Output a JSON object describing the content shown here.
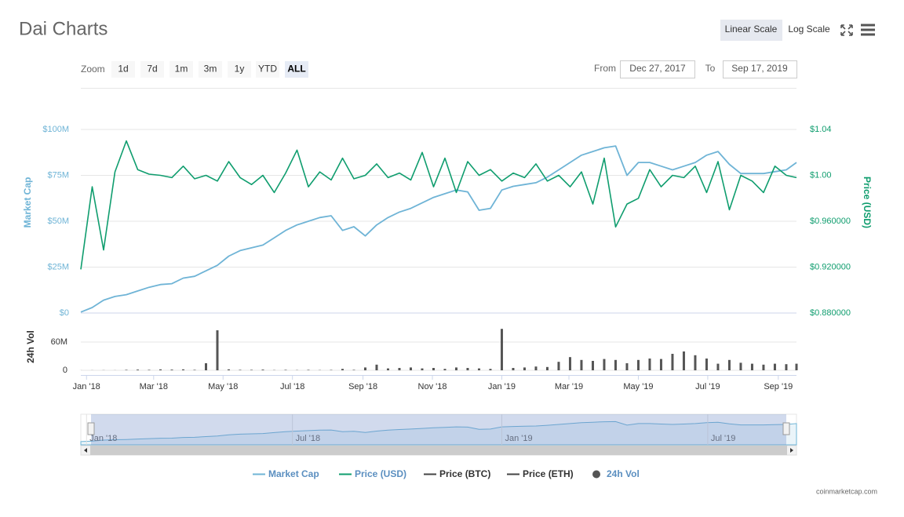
{
  "title": "Dai Charts",
  "scale_buttons": [
    "Linear Scale",
    "Log Scale"
  ],
  "zoom_label": "Zoom",
  "zoom_buttons": [
    "1d",
    "7d",
    "1m",
    "3m",
    "1y",
    "YTD",
    "ALL"
  ],
  "zoom_selected_index": 6,
  "from_label": "From",
  "from_date": "Dec 27, 2017",
  "to_label": "To",
  "to_date": "Sep 17, 2019",
  "credit": "coinmarketcap.com",
  "chart_data": {
    "type": "line",
    "grid": true,
    "ylabel": "Market Cap",
    "y2label": "Price (USD)",
    "volume_ylabel": "24h Vol",
    "x": [
      0,
      10,
      20,
      30,
      40,
      50,
      60,
      70,
      80,
      90,
      100,
      110,
      120,
      130,
      140,
      150,
      160,
      170,
      180,
      190,
      200,
      210,
      220,
      230,
      240,
      250,
      260,
      270,
      280,
      290,
      300,
      310,
      320,
      330,
      340,
      350,
      360,
      370,
      380,
      390,
      400,
      410,
      420,
      430,
      440,
      450,
      460,
      470,
      480,
      490,
      500,
      510,
      520,
      530,
      540,
      550,
      560,
      570,
      580,
      590,
      600,
      610,
      620,
      629
    ],
    "xlim": [
      0,
      629
    ],
    "xticks": [
      {
        "value": 5,
        "label": "Jan '18"
      },
      {
        "value": 64,
        "label": "Mar '18"
      },
      {
        "value": 125,
        "label": "May '18"
      },
      {
        "value": 186,
        "label": "Jul '18"
      },
      {
        "value": 248,
        "label": "Sep '18"
      },
      {
        "value": 309,
        "label": "Nov '18"
      },
      {
        "value": 370,
        "label": "Jan '19"
      },
      {
        "value": 429,
        "label": "Mar '19"
      },
      {
        "value": 490,
        "label": "May '19"
      },
      {
        "value": 551,
        "label": "Jul '19"
      },
      {
        "value": 613,
        "label": "Sep '19"
      }
    ],
    "navigator_xticks": [
      {
        "value": 5,
        "label": "Jan '18"
      },
      {
        "value": 186,
        "label": "Jul '18"
      },
      {
        "value": 370,
        "label": "Jan '19"
      },
      {
        "value": 551,
        "label": "Jul '19"
      }
    ],
    "ylim": [
      0,
      110000000
    ],
    "yticks": [
      {
        "value": 0,
        "label": "$0"
      },
      {
        "value": 25000000,
        "label": "$25M"
      },
      {
        "value": 50000000,
        "label": "$50M"
      },
      {
        "value": 75000000,
        "label": "$75M"
      },
      {
        "value": 100000000,
        "label": "$100M"
      }
    ],
    "y2lim": [
      0.88,
      1.056
    ],
    "y2ticks": [
      {
        "value": 0.88,
        "label": "$0.880000"
      },
      {
        "value": 0.92,
        "label": "$0.920000"
      },
      {
        "value": 0.96,
        "label": "$0.960000"
      },
      {
        "value": 1,
        "label": "$1.00"
      },
      {
        "value": 1.04,
        "label": "$1.04"
      }
    ],
    "volume_ylim": [
      0,
      110000000
    ],
    "volume_yticks": [
      0,
      {
        "value": 60000000,
        "label": "60M"
      }
    ],
    "series": [
      {
        "name": "Market Cap",
        "color": "#6fb4d6",
        "values": [
          500000,
          3000000,
          7000000,
          9000000,
          10000000,
          12000000,
          14000000,
          15500000,
          16000000,
          19000000,
          20000000,
          23000000,
          26000000,
          31000000,
          34000000,
          35500000,
          37000000,
          41000000,
          45000000,
          48000000,
          50000000,
          52000000,
          53000000,
          45000000,
          47000000,
          42000000,
          48000000,
          52000000,
          55000000,
          57000000,
          60000000,
          63000000,
          65000000,
          67000000,
          66000000,
          56000000,
          57000000,
          67000000,
          69000000,
          70000000,
          71000000,
          74000000,
          78000000,
          82000000,
          86000000,
          88000000,
          90000000,
          91000000,
          75000000,
          82000000,
          82000000,
          80000000,
          78000000,
          80000000,
          82000000,
          86000000,
          88000000,
          81000000,
          76000000,
          76000000,
          76000000,
          77000000,
          78000000,
          82000000
        ]
      },
      {
        "name": "Price (USD)",
        "color": "#0f9d6e",
        "axis": "y2",
        "values": [
          0.918,
          0.99,
          0.935,
          1.003,
          1.03,
          1.005,
          1.001,
          1.0,
          0.998,
          1.008,
          0.997,
          1.0,
          0.995,
          1.012,
          0.998,
          0.992,
          1.0,
          0.985,
          1.002,
          1.022,
          0.99,
          1.003,
          0.996,
          1.015,
          0.997,
          1.0,
          1.01,
          0.998,
          1.002,
          0.996,
          1.02,
          0.99,
          1.015,
          0.985,
          1.012,
          1.0,
          1.005,
          0.995,
          1.002,
          0.998,
          1.01,
          0.995,
          1.0,
          0.99,
          1.003,
          0.975,
          1.015,
          0.955,
          0.975,
          0.98,
          1.005,
          0.99,
          1.0,
          0.998,
          1.008,
          0.985,
          1.012,
          0.97,
          1.0,
          0.995,
          0.985,
          1.008,
          1.0,
          0.998
        ]
      },
      {
        "name": "24h Vol",
        "color": "#555555",
        "axis": "volume",
        "values": [
          100000,
          200000,
          300000,
          200000,
          1000000,
          1500000,
          1000000,
          2000000,
          1500000,
          2000000,
          1000000,
          15000000,
          85000000,
          2000000,
          1000000,
          1000000,
          1500000,
          500000,
          1000000,
          500000,
          1000000,
          500000,
          800000,
          3000000,
          1000000,
          6000000,
          12000000,
          4000000,
          5000000,
          6000000,
          4000000,
          5000000,
          3000000,
          6000000,
          5000000,
          4000000,
          3000000,
          88000000,
          5000000,
          6000000,
          8000000,
          7000000,
          18000000,
          28000000,
          22000000,
          20000000,
          24000000,
          22000000,
          15000000,
          22000000,
          25000000,
          24000000,
          35000000,
          40000000,
          32000000,
          25000000,
          14000000,
          22000000,
          16000000,
          14000000,
          12000000,
          14000000,
          13000000,
          14000000
        ]
      }
    ],
    "legend_only": [
      {
        "name": "Price (BTC)",
        "color": "#444444"
      },
      {
        "name": "Price (ETH)",
        "color": "#444444"
      }
    ]
  }
}
